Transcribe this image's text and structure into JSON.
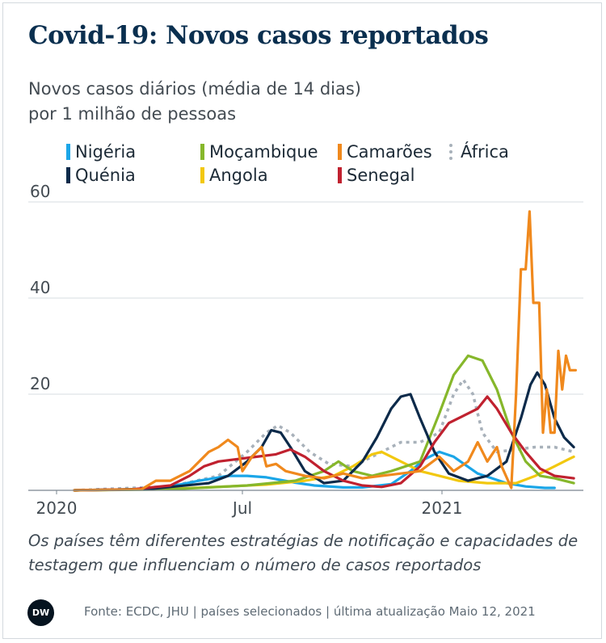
{
  "title": "Covid-19: Novos casos reportados",
  "subtitle_line1": "Novos casos diários (média de 14 dias)",
  "subtitle_line2": "por 1 milhão de pessoas",
  "note": "Os países têm diferentes estratégias de notificação e capacidades de testagem que influenciam o número de casos reportados",
  "footer": "Fonte: ECDC, JHU | países selecionados | última atualização Maio 12, 2021",
  "logo_text": "DW",
  "chart_data": {
    "type": "line",
    "ylim": [
      0,
      60
    ],
    "yticks": [
      20,
      40,
      60
    ],
    "xticks": [
      "2020",
      "Jul",
      "2021"
    ],
    "series": [
      {
        "name": "Nigéria",
        "color": "#1ba6e8",
        "style": "solid",
        "points": [
          [
            0,
            0
          ],
          [
            60,
            0.2
          ],
          [
            100,
            0.8
          ],
          [
            130,
            2
          ],
          [
            160,
            3
          ],
          [
            180,
            3
          ],
          [
            200,
            2.7
          ],
          [
            230,
            1.6
          ],
          [
            250,
            1
          ],
          [
            280,
            0.6
          ],
          [
            300,
            0.6
          ],
          [
            330,
            1.3
          ],
          [
            350,
            4
          ],
          [
            365,
            6.5
          ],
          [
            380,
            8
          ],
          [
            395,
            7
          ],
          [
            420,
            3.5
          ],
          [
            450,
            1.5
          ],
          [
            470,
            0.8
          ],
          [
            490,
            0.5
          ],
          [
            500,
            0.5
          ]
        ]
      },
      {
        "name": "Quénia",
        "color": "#0c2a4a",
        "style": "solid",
        "points": [
          [
            0,
            0
          ],
          [
            80,
            0.3
          ],
          [
            140,
            1.5
          ],
          [
            160,
            3
          ],
          [
            180,
            6
          ],
          [
            195,
            9
          ],
          [
            205,
            12.5
          ],
          [
            215,
            12
          ],
          [
            225,
            9
          ],
          [
            240,
            4
          ],
          [
            260,
            1.5
          ],
          [
            280,
            2
          ],
          [
            300,
            6
          ],
          [
            315,
            11
          ],
          [
            330,
            17
          ],
          [
            340,
            19.5
          ],
          [
            350,
            20
          ],
          [
            360,
            15
          ],
          [
            375,
            8
          ],
          [
            390,
            3.5
          ],
          [
            410,
            2
          ],
          [
            430,
            3
          ],
          [
            450,
            6
          ],
          [
            465,
            15
          ],
          [
            475,
            22
          ],
          [
            482,
            24.5
          ],
          [
            490,
            22
          ],
          [
            500,
            15
          ],
          [
            510,
            11
          ],
          [
            520,
            9
          ]
        ]
      },
      {
        "name": "Moçambique",
        "color": "#86b72b",
        "style": "solid",
        "points": [
          [
            0,
            0
          ],
          [
            100,
            0.2
          ],
          [
            180,
            1
          ],
          [
            230,
            2
          ],
          [
            260,
            4
          ],
          [
            275,
            6
          ],
          [
            290,
            4
          ],
          [
            310,
            3
          ],
          [
            330,
            4
          ],
          [
            360,
            6
          ],
          [
            380,
            16
          ],
          [
            395,
            24
          ],
          [
            410,
            28
          ],
          [
            425,
            27
          ],
          [
            440,
            21
          ],
          [
            455,
            12
          ],
          [
            470,
            6
          ],
          [
            485,
            3
          ],
          [
            500,
            2.5
          ],
          [
            520,
            1.5
          ]
        ]
      },
      {
        "name": "Angola",
        "color": "#f2c80f",
        "style": "solid",
        "points": [
          [
            0,
            0
          ],
          [
            100,
            0.3
          ],
          [
            160,
            0.8
          ],
          [
            200,
            1.2
          ],
          [
            240,
            2
          ],
          [
            270,
            3
          ],
          [
            290,
            5
          ],
          [
            310,
            7.5
          ],
          [
            320,
            8
          ],
          [
            340,
            6
          ],
          [
            360,
            4
          ],
          [
            380,
            3
          ],
          [
            400,
            2
          ],
          [
            430,
            1.5
          ],
          [
            460,
            1.5
          ],
          [
            480,
            3
          ],
          [
            500,
            5
          ],
          [
            515,
            6.5
          ],
          [
            520,
            7
          ]
        ]
      },
      {
        "name": "Camarões",
        "color": "#f0891d",
        "style": "solid",
        "points": [
          [
            0,
            0
          ],
          [
            70,
            0.2
          ],
          [
            85,
            2
          ],
          [
            100,
            2
          ],
          [
            120,
            4
          ],
          [
            140,
            8
          ],
          [
            150,
            9
          ],
          [
            160,
            10.5
          ],
          [
            170,
            9
          ],
          [
            175,
            4
          ],
          [
            185,
            7
          ],
          [
            195,
            9
          ],
          [
            200,
            5
          ],
          [
            210,
            5.5
          ],
          [
            220,
            4
          ],
          [
            240,
            3
          ],
          [
            260,
            2.5
          ],
          [
            280,
            3.5
          ],
          [
            300,
            2.5
          ],
          [
            320,
            3
          ],
          [
            340,
            3.5
          ],
          [
            360,
            4
          ],
          [
            380,
            7
          ],
          [
            395,
            4
          ],
          [
            410,
            6
          ],
          [
            420,
            10
          ],
          [
            430,
            6
          ],
          [
            440,
            9
          ],
          [
            445,
            5
          ],
          [
            455,
            0.5
          ],
          [
            460,
            20
          ],
          [
            465,
            46
          ],
          [
            470,
            46
          ],
          [
            474,
            58
          ],
          [
            478,
            39
          ],
          [
            484,
            39
          ],
          [
            488,
            12
          ],
          [
            492,
            21
          ],
          [
            496,
            12
          ],
          [
            500,
            12
          ],
          [
            504,
            29
          ],
          [
            508,
            21
          ],
          [
            512,
            28
          ],
          [
            516,
            25
          ],
          [
            522,
            25
          ]
        ]
      },
      {
        "name": "Senegal",
        "color": "#c0212f",
        "style": "solid",
        "points": [
          [
            0,
            0
          ],
          [
            60,
            0.2
          ],
          [
            100,
            1
          ],
          [
            120,
            3
          ],
          [
            135,
            5
          ],
          [
            150,
            6
          ],
          [
            170,
            6.5
          ],
          [
            190,
            7
          ],
          [
            210,
            7.5
          ],
          [
            225,
            8.5
          ],
          [
            240,
            7
          ],
          [
            260,
            4
          ],
          [
            280,
            2
          ],
          [
            300,
            1
          ],
          [
            320,
            0.7
          ],
          [
            340,
            1.5
          ],
          [
            360,
            5
          ],
          [
            375,
            10
          ],
          [
            390,
            14
          ],
          [
            405,
            15.5
          ],
          [
            420,
            17
          ],
          [
            430,
            19.5
          ],
          [
            440,
            17
          ],
          [
            455,
            12
          ],
          [
            470,
            8
          ],
          [
            485,
            4.5
          ],
          [
            500,
            3
          ],
          [
            520,
            2.5
          ]
        ]
      },
      {
        "name": "África",
        "color": "#a8b1ba",
        "style": "dotted",
        "points": [
          [
            0,
            0
          ],
          [
            100,
            0.8
          ],
          [
            150,
            3
          ],
          [
            180,
            8
          ],
          [
            200,
            12
          ],
          [
            212,
            13.5
          ],
          [
            225,
            12
          ],
          [
            245,
            8
          ],
          [
            265,
            5.5
          ],
          [
            290,
            5
          ],
          [
            320,
            8
          ],
          [
            340,
            10
          ],
          [
            360,
            10
          ],
          [
            380,
            12
          ],
          [
            395,
            20
          ],
          [
            405,
            23
          ],
          [
            415,
            20
          ],
          [
            425,
            12
          ],
          [
            440,
            8
          ],
          [
            460,
            8.5
          ],
          [
            480,
            9
          ],
          [
            500,
            9
          ],
          [
            520,
            8
          ]
        ]
      }
    ]
  }
}
